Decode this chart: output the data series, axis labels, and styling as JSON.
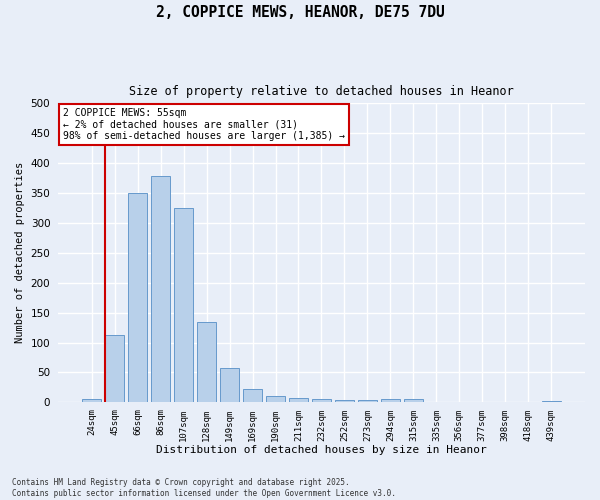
{
  "title1": "2, COPPICE MEWS, HEANOR, DE75 7DU",
  "title2": "Size of property relative to detached houses in Heanor",
  "xlabel": "Distribution of detached houses by size in Heanor",
  "ylabel": "Number of detached properties",
  "categories": [
    "24sqm",
    "45sqm",
    "66sqm",
    "86sqm",
    "107sqm",
    "128sqm",
    "149sqm",
    "169sqm",
    "190sqm",
    "211sqm",
    "232sqm",
    "252sqm",
    "273sqm",
    "294sqm",
    "315sqm",
    "335sqm",
    "356sqm",
    "377sqm",
    "398sqm",
    "418sqm",
    "439sqm"
  ],
  "values": [
    5,
    112,
    350,
    378,
    325,
    135,
    57,
    23,
    11,
    8,
    5,
    4,
    4,
    5,
    5,
    1,
    0,
    0,
    0,
    0,
    2
  ],
  "bar_color": "#b8d0ea",
  "bar_edge_color": "#6699cc",
  "ylim": [
    0,
    500
  ],
  "yticks": [
    0,
    50,
    100,
    150,
    200,
    250,
    300,
    350,
    400,
    450,
    500
  ],
  "annotation_title": "2 COPPICE MEWS: 55sqm",
  "annotation_line1": "← 2% of detached houses are smaller (31)",
  "annotation_line2": "98% of semi-detached houses are larger (1,385) →",
  "vline_color": "#cc0000",
  "bg_color": "#e8eef8",
  "grid_color": "#ffffff",
  "footer1": "Contains HM Land Registry data © Crown copyright and database right 2025.",
  "footer2": "Contains public sector information licensed under the Open Government Licence v3.0."
}
